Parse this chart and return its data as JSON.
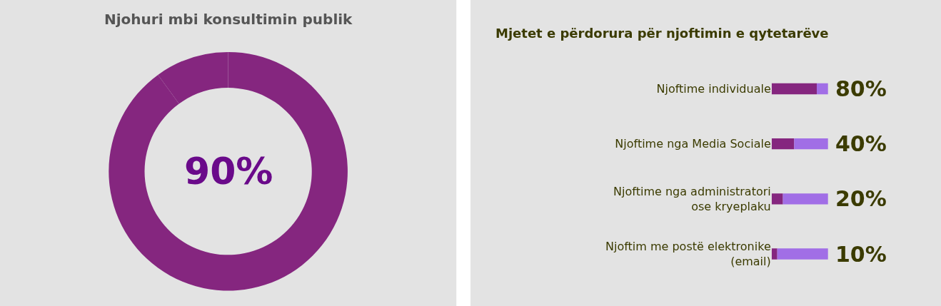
{
  "chart_data": [
    {
      "type": "donut",
      "title": "Njohuri mbi konsultimin publik",
      "categories": [
        null,
        null
      ],
      "values": [
        90,
        10
      ],
      "colors": [
        "#85267f",
        "#85267f"
      ],
      "value_labels": [
        "90%",
        null
      ]
    },
    {
      "type": "bar",
      "orientation": "horizontal",
      "stacked": true,
      "title": "Mjetet e përdorura për njoftimin e qytetarëve",
      "categories": [
        "Njoftime individuale",
        "Njoftime nga Media Sociale",
        "Njoftime nga administratori ose kryeplaku",
        "Njoftim me postë elektronike (email)"
      ],
      "xlim": [
        0,
        100
      ],
      "tick_labels": "y",
      "series": [
        {
          "color": "#85267f",
          "values": [
            80,
            40,
            20,
            10
          ],
          "value_labels": [
            "80%",
            "40%",
            "20%",
            "10%"
          ]
        },
        {
          "color": "#a16ee6",
          "values": [
            20,
            60,
            80,
            90
          ]
        }
      ]
    }
  ]
}
